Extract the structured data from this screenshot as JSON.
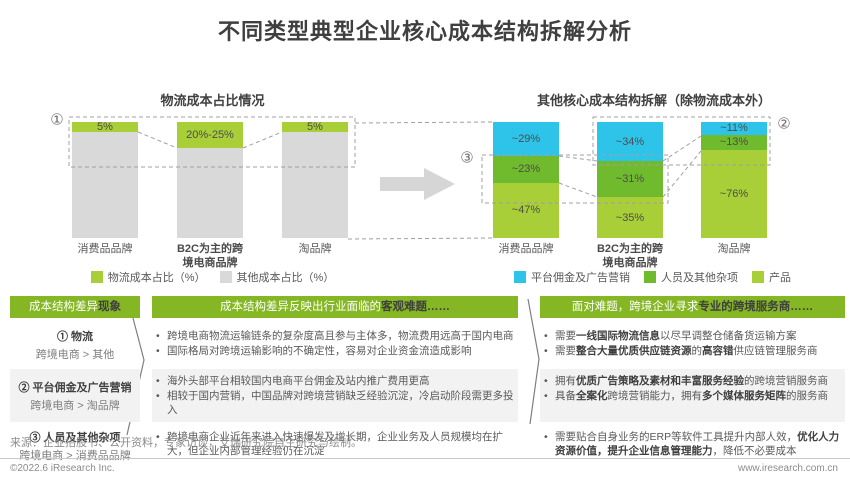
{
  "title": "不同类型典型企业核心成本结构拆解分析",
  "colors": {
    "blue": "#2ec4e9",
    "midGreen": "#70ba2d",
    "lightGreen": "#a8ce38",
    "barGray": "#d9d9d9",
    "headerGreen": "#84b723",
    "rowShade": "#f2f2f2"
  },
  "chart_data": [
    {
      "type": "bar",
      "stacked": true,
      "title": "物流成本占比情况",
      "annotation": "①",
      "categories": [
        "消费品品牌",
        "B2C为主的跨\n境电商品牌",
        "淘品牌"
      ],
      "category_bold_index": 1,
      "series": [
        {
          "name": "物流成本占比（%）",
          "colorKey": "lightGreen",
          "values": [
            5,
            22.5,
            5
          ],
          "value_labels": [
            "5%",
            "20%-25%",
            "5%"
          ]
        },
        {
          "name": "其他成本占比（%）",
          "colorKey": "barGray",
          "values": [
            95,
            77.5,
            95
          ],
          "value_labels": [
            "",
            "",
            ""
          ]
        }
      ],
      "ylim": [
        0,
        100
      ],
      "axes": "none",
      "legend_position": "bottom"
    },
    {
      "type": "bar",
      "stacked": true,
      "title": "其他核心成本结构拆解（除物流成本外）",
      "annotations": {
        "top": "②",
        "mid": "③"
      },
      "categories": [
        "消费品品牌",
        "B2C为主的跨\n境电商品牌",
        "淘品牌"
      ],
      "category_bold_index": 1,
      "series": [
        {
          "name": "平台佣金及广告营销",
          "colorKey": "blue",
          "values": [
            29,
            34,
            11
          ],
          "value_labels": [
            "~29%",
            "~34%",
            "~11%"
          ]
        },
        {
          "name": "人员及其他杂项",
          "colorKey": "midGreen",
          "values": [
            23,
            31,
            13
          ],
          "value_labels": [
            "~23%",
            "~31%",
            "~13%"
          ]
        },
        {
          "name": "产品",
          "colorKey": "lightGreen",
          "values": [
            47,
            35,
            76
          ],
          "value_labels": [
            "~47%",
            "~35%",
            "~76%"
          ]
        }
      ],
      "ylim": [
        0,
        100
      ],
      "axes": "none",
      "legend_position": "bottom"
    }
  ],
  "table": {
    "headers": [
      "成本结构差异**现象**",
      "成本结构差异反映出行业面临的**客观难题……**",
      "面对难题，跨境企业寻求**专业的跨境服务商……**"
    ],
    "rows": [
      {
        "shaded": false,
        "phenomenon": {
          "title": "① 物流",
          "sub": "跨境电商 > 其他"
        },
        "problems": [
          "跨境电商物流运输链条的复杂度高且参与主体多，物流费用远高于国内电商",
          "国际格局对跨境运输影响的不确定性，容易对企业资金流造成影响"
        ],
        "solutions": [
          "需要**一线国际物流信息**以尽早调整仓储备货运输方案",
          "需要**整合大量优质供应链资源**的**高容错**供应链管理服务商"
        ]
      },
      {
        "shaded": true,
        "phenomenon": {
          "title": "② 平台佣金及广告营销",
          "sub": "跨境电商 > 淘品牌"
        },
        "problems": [
          "海外头部平台相较国内电商平台佣金及站内推广费用更高",
          "相较于国内营销，中国品牌对跨境营销缺乏经验沉淀，冷启动阶段需更多投入"
        ],
        "solutions": [
          "拥有**优质广告策略及素材和丰富服务经验**的跨境营销服务商",
          "具备**全案化**跨境营销能力，拥有**多个媒体服务矩阵**的服务商"
        ]
      },
      {
        "shaded": false,
        "phenomenon": {
          "title": "③ 人员及其他杂项",
          "sub": "跨境电商 > 消费品品牌"
        },
        "problems": [
          "跨境电商企业近年来进入快速爆发及增长期，企业业务及人员规模均在扩大，但企业内部管理经验仍在沉淀"
        ],
        "solutions": [
          "需要贴合自身业务的ERP等软件工具提升内部人效，**优化人力资源价值，提升企业信息管理能力**，降低不必要成本"
        ]
      }
    ]
  },
  "source": "来源：企业招股书、公开资料，专家访谈，艾瑞研究院自主研究与绘制。",
  "footer": {
    "left": "©2022.6 iResearch Inc.",
    "right": "www.iresearch.com.cn"
  }
}
